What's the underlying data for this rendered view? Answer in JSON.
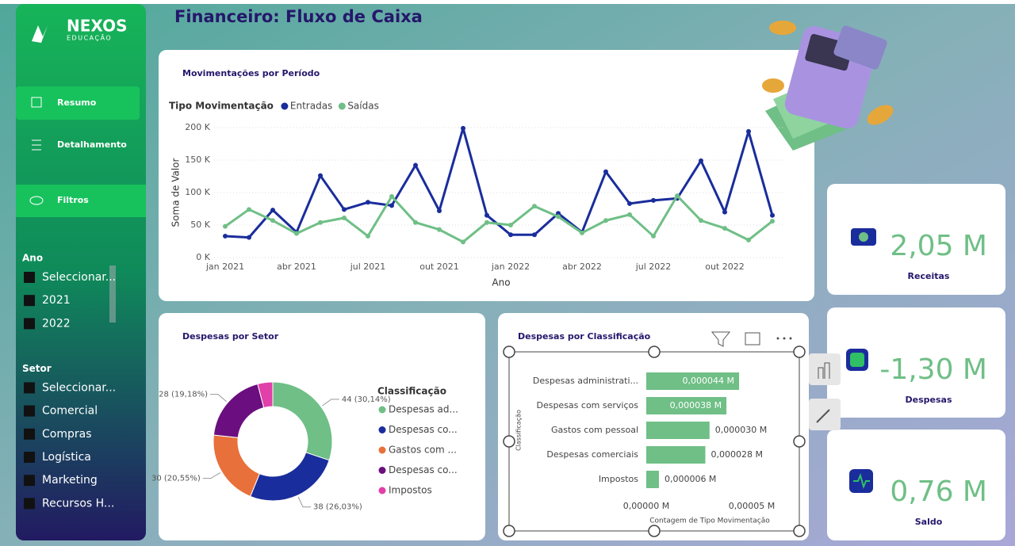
{
  "header": {
    "title": "Financeiro: Fluxo de Caixa"
  },
  "sidebar": {
    "logo": "NEXOS",
    "logo_sub": "EDUCAÇÃO",
    "nav": [
      "Resumo",
      "Detalhamento",
      "Filtros"
    ],
    "filters": [
      {
        "title": "Ano",
        "items": [
          "Seleccionar...",
          "2021",
          "2022"
        ]
      },
      {
        "title": "Setor",
        "items": [
          "Seleccionar...",
          "Comercial",
          "Compras",
          "Logística",
          "Marketing",
          "Recursos H..."
        ]
      }
    ]
  },
  "cards": [
    {
      "value": "2,05 M",
      "label": "Receitas"
    },
    {
      "value": "-1,30 M",
      "label": "Despesas"
    },
    {
      "value": "0,76 M",
      "label": "Saldo"
    }
  ],
  "chart_data": [
    {
      "type": "line",
      "title": "Movimentações por Período",
      "legend_title": "Tipo Movimentação",
      "categories": [
        "jan 2021",
        null,
        null,
        "abr 2021",
        null,
        null,
        "jul 2021",
        null,
        null,
        "out 2021",
        null,
        null,
        "jan 2022",
        null,
        null,
        "abr 2022",
        null,
        null,
        "jul 2022",
        null,
        null,
        "out 2022",
        null,
        null
      ],
      "series": [
        {
          "name": "Entradas",
          "color": "#1a2d9c",
          "values": [
            33000,
            31000,
            73000,
            39000,
            126000,
            74000,
            85000,
            80000,
            142000,
            72000,
            199000,
            65000,
            35000,
            35000,
            68000,
            39000,
            132000,
            83000,
            88000,
            91000,
            149000,
            70000,
            194000,
            65000
          ]
        },
        {
          "name": "Saídas",
          "color": "#6fbf86",
          "values": [
            48000,
            74000,
            57000,
            37000,
            54000,
            61000,
            33000,
            94000,
            54000,
            43000,
            24000,
            54000,
            50000,
            79000,
            63000,
            38000,
            57000,
            66000,
            33000,
            95000,
            57000,
            45000,
            27000,
            56000
          ]
        }
      ],
      "ylim": [
        0,
        200000
      ],
      "yticks": [
        {
          "value": 0,
          "label": "0 K"
        },
        {
          "value": 50000,
          "label": "50 K"
        },
        {
          "value": 100000,
          "label": "100 K"
        },
        {
          "value": 150000,
          "label": "150 K"
        },
        {
          "value": 200000,
          "label": "200 K"
        }
      ],
      "y_label": "Soma de Valor",
      "x_label": "Ano",
      "grid": true
    },
    {
      "type": "pie",
      "title": "Despesas por Setor",
      "legend_title": "Classificação",
      "categories": [
        "Despesas ad...",
        "Despesas co...",
        "Gastos com ...",
        "Despesas co...",
        "Impostos"
      ],
      "values": [
        44,
        38,
        30,
        28,
        6
      ],
      "value_labels": [
        "44 (30,14%)",
        "38 (26,03%)",
        "30 (20,55%)",
        "28 (19,18%)",
        null
      ],
      "colors": [
        "#6fbf86",
        "#1a2d9c",
        "#e8703a",
        "#6b0e7f",
        "#e040a8"
      ],
      "donut": true
    },
    {
      "type": "bar",
      "orientation": "horizontal",
      "title": "Despesas por Classificação",
      "categories": [
        "Despesas administrati...",
        "Despesas com serviços",
        "Gastos com pessoal",
        "Despesas comerciais",
        "Impostos"
      ],
      "values": [
        4.4e-05,
        3.8e-05,
        3e-05,
        2.8e-05,
        6e-06
      ],
      "value_labels": [
        "0,000044 M",
        "0,000038 M",
        "0,000030 M",
        "0,000028 M",
        "0,000006 M"
      ],
      "color": "#6fbf86",
      "xlim": [
        0,
        5e-05
      ],
      "xticks": [
        {
          "value": 0,
          "label": "0,00000 M"
        },
        {
          "value": 5e-05,
          "label": "0,00005 M"
        }
      ],
      "x_label": "Contagem de Tipo Movimentação",
      "y_label": "Classificação"
    }
  ]
}
